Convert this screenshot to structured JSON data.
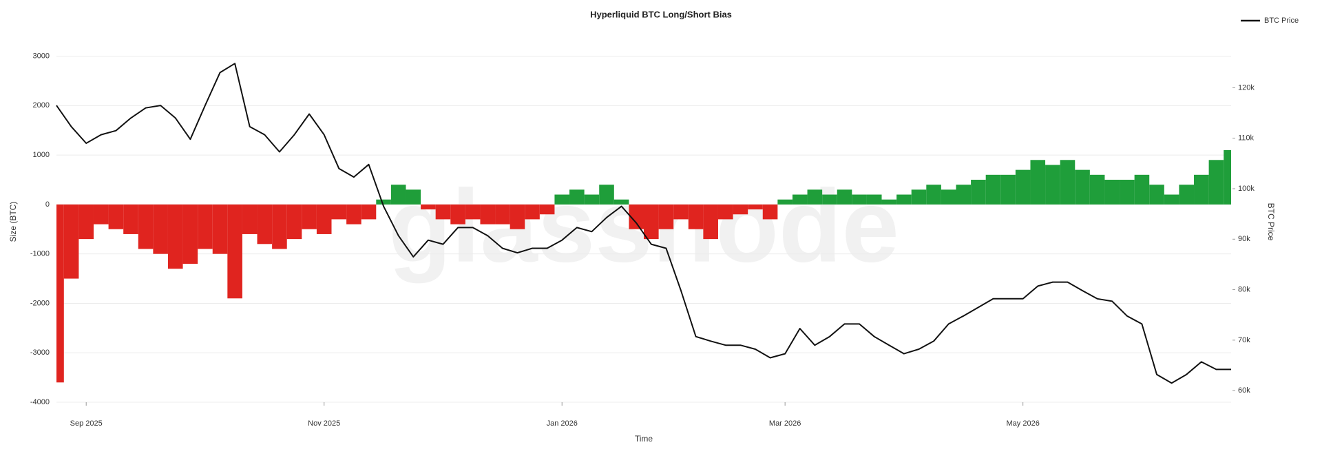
{
  "chart_data": {
    "type": "bar-line",
    "title": "Hyperliquid BTC Long/Short Bias",
    "watermark": "glassnode",
    "x_label": "Time",
    "y_label": "Size (BTC)",
    "y2_label": "BTC Price",
    "categories": [
      null,
      null,
      "Sep 2025",
      null,
      null,
      null,
      null,
      null,
      null,
      null,
      null,
      null,
      null,
      null,
      null,
      null,
      null,
      null,
      "Nov 2025",
      null,
      null,
      null,
      null,
      null,
      null,
      null,
      null,
      null,
      null,
      null,
      null,
      null,
      null,
      null,
      "Jan 2026",
      null,
      null,
      null,
      null,
      null,
      null,
      null,
      null,
      null,
      null,
      null,
      null,
      null,
      null,
      "Mar 2026",
      null,
      null,
      null,
      null,
      null,
      null,
      null,
      null,
      null,
      null,
      null,
      null,
      null,
      null,
      null,
      "May 2026",
      null,
      null,
      null,
      null,
      null,
      null,
      null,
      null,
      null,
      null,
      null,
      null,
      null,
      null
    ],
    "series": [
      {
        "color": "#e0241f",
        "positive_color": "#1f9e3a",
        "axis": "y",
        "values": [
          -3600,
          -1500,
          -700,
          -400,
          -500,
          -600,
          -900,
          -1000,
          -1300,
          -1200,
          -900,
          -1000,
          -1900,
          -600,
          -800,
          -900,
          -700,
          -500,
          -600,
          -300,
          -400,
          -300,
          100,
          400,
          300,
          -100,
          -300,
          -400,
          -300,
          -400,
          -400,
          -500,
          -300,
          -200,
          200,
          300,
          200,
          400,
          100,
          -500,
          -700,
          -500,
          -300,
          -500,
          -700,
          -300,
          -200,
          -100,
          -300,
          100,
          200,
          300,
          200,
          300,
          200,
          200,
          100,
          200,
          300,
          400,
          300,
          400,
          500,
          600,
          600,
          700,
          900,
          800,
          900,
          700,
          600,
          500,
          500,
          600,
          400,
          200,
          400,
          600,
          900,
          1100
        ]
      },
      {
        "name": "BTC Price",
        "color": "#111111",
        "axis": "y2",
        "values": [
          116500,
          112300,
          109000,
          110700,
          111500,
          114000,
          116000,
          116500,
          114000,
          109800,
          116500,
          123000,
          124800,
          112300,
          110700,
          107300,
          110700,
          114800,
          110700,
          104000,
          102300,
          104800,
          96500,
          90700,
          86500,
          89800,
          89000,
          92300,
          92300,
          90700,
          88200,
          87300,
          88200,
          88200,
          89800,
          92300,
          91500,
          94300,
          96500,
          93200,
          89000,
          88200,
          79800,
          70700,
          69800,
          69000,
          69000,
          68200,
          66500,
          67300,
          72300,
          69000,
          70700,
          73200,
          73200,
          70700,
          69000,
          67300,
          68200,
          69800,
          73200,
          74800,
          76500,
          78200,
          78200,
          78200,
          80700,
          81500,
          81500,
          79800,
          78200,
          77700,
          74800,
          73200,
          63200,
          61500,
          63200,
          65700,
          64200,
          64200
        ]
      }
    ],
    "ylim": [
      -4000,
      3300
    ],
    "yticks": [
      -4000,
      -3000,
      -2000,
      -1000,
      0,
      1000,
      2000,
      3000
    ],
    "y2lim": [
      57700,
      129200
    ],
    "y2ticks": [
      {
        "value": 60000,
        "label": "60k"
      },
      {
        "value": 70000,
        "label": "70k"
      },
      {
        "value": 80000,
        "label": "80k"
      },
      {
        "value": 90000,
        "label": "90k"
      },
      {
        "value": 100000,
        "label": "100k"
      },
      {
        "value": 110000,
        "label": "110k"
      },
      {
        "value": 120000,
        "label": "120k"
      }
    ],
    "grid": true,
    "legend": "top-right"
  }
}
